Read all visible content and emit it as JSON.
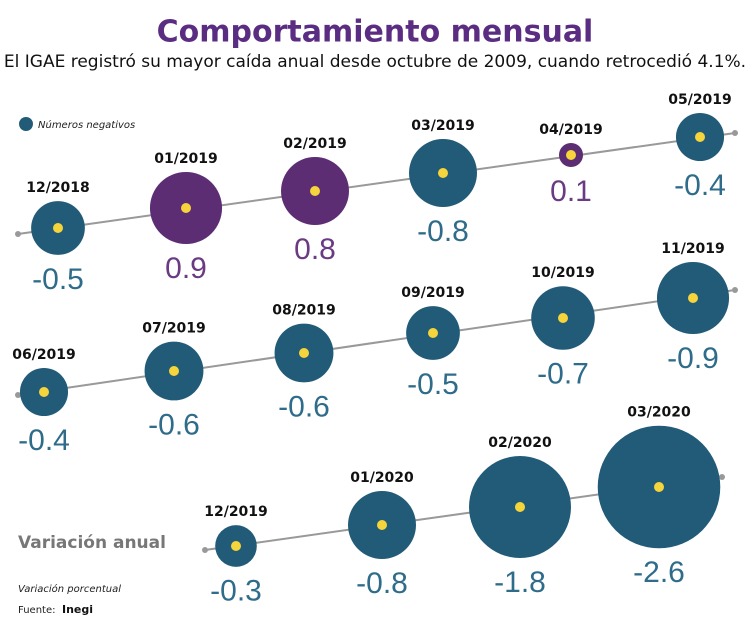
{
  "chart_data": {
    "type": "bubble",
    "title": "Comportamiento mensual",
    "subtitle": "El IGAE registró su mayor caída anual desde octubre de 2009, cuando retrocedió 4.1%.",
    "legend": "Números negativos",
    "label": "Variación anual",
    "note": "Variación porcentual",
    "source_label": "Fuente:",
    "source": "Inegi",
    "categories": [
      "12/2018",
      "01/2019",
      "02/2019",
      "03/2019",
      "04/2019",
      "05/2019",
      "06/2019",
      "07/2019",
      "08/2019",
      "09/2019",
      "10/2019",
      "11/2019",
      "12/2019",
      "01/2020",
      "02/2020",
      "03/2020"
    ],
    "values": [
      -0.5,
      0.9,
      0.8,
      -0.8,
      0.1,
      -0.4,
      -0.4,
      -0.6,
      -0.6,
      -0.5,
      -0.7,
      -0.9,
      -0.3,
      -0.8,
      -1.8,
      -2.6
    ],
    "negative_color": "#225b77",
    "positive_color": "#5c2d73",
    "marker_color": "#f6d43c"
  }
}
